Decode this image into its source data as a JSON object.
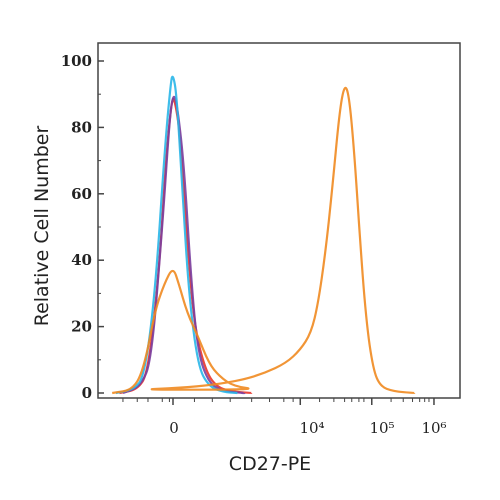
{
  "chart_data": {
    "type": "line",
    "xlabel": "CD27-PE",
    "ylabel": "Relative Cell Number",
    "ylim": [
      0,
      100
    ],
    "y_ticks": [
      "0",
      "20",
      "40",
      "60",
      "80",
      "100"
    ],
    "x_ticks": [
      "0",
      "10⁴",
      "10⁵",
      "10⁶"
    ],
    "x_scale": "biexponential (0 at left, then 10^4, 10^5, 10^6)",
    "grid": false,
    "legend": "none",
    "series": [
      {
        "color": "#e8352b",
        "points": [
          [
            -0.75,
            0
          ],
          [
            -0.5,
            1
          ],
          [
            -0.35,
            6
          ],
          [
            -0.2,
            35
          ],
          [
            -0.1,
            70
          ],
          [
            -0.02,
            88
          ],
          [
            0.02,
            89
          ],
          [
            0.1,
            78
          ],
          [
            0.2,
            45
          ],
          [
            0.3,
            20
          ],
          [
            0.45,
            7
          ],
          [
            0.6,
            2
          ],
          [
            0.8,
            0.5
          ],
          [
            1.1,
            0
          ]
        ]
      },
      {
        "color": "#7a3fa0",
        "points": [
          [
            -0.7,
            0
          ],
          [
            -0.45,
            2
          ],
          [
            -0.3,
            10
          ],
          [
            -0.15,
            50
          ],
          [
            -0.05,
            82
          ],
          [
            0.0,
            90
          ],
          [
            0.05,
            88
          ],
          [
            0.15,
            70
          ],
          [
            0.25,
            35
          ],
          [
            0.35,
            12
          ],
          [
            0.5,
            3
          ],
          [
            0.7,
            0.5
          ],
          [
            1.0,
            0
          ]
        ]
      },
      {
        "color": "#29b6e8",
        "points": [
          [
            -0.8,
            0
          ],
          [
            -0.55,
            1
          ],
          [
            -0.4,
            5
          ],
          [
            -0.25,
            30
          ],
          [
            -0.12,
            72
          ],
          [
            -0.03,
            94
          ],
          [
            0.0,
            96
          ],
          [
            0.05,
            90
          ],
          [
            0.12,
            65
          ],
          [
            0.22,
            30
          ],
          [
            0.35,
            8
          ],
          [
            0.5,
            2
          ],
          [
            0.7,
            0.3
          ],
          [
            0.9,
            0
          ]
        ]
      },
      {
        "color": "#f08a20",
        "points": [
          [
            -0.85,
            0
          ],
          [
            -0.55,
            1
          ],
          [
            -0.4,
            8
          ],
          [
            -0.25,
            25
          ],
          [
            -0.12,
            33
          ],
          [
            0.0,
            38
          ],
          [
            0.08,
            33
          ],
          [
            0.2,
            24
          ],
          [
            0.35,
            17
          ],
          [
            0.5,
            9
          ],
          [
            0.65,
            5
          ],
          [
            0.85,
            2
          ],
          [
            1.2,
            1
          ],
          [
            1.7,
            1
          ],
          [
            2.3,
            1.5
          ],
          [
            2.8,
            2.5
          ],
          [
            3.2,
            4
          ],
          [
            3.5,
            6
          ],
          [
            3.8,
            9
          ],
          [
            4.0,
            13
          ],
          [
            4.15,
            18
          ],
          [
            4.25,
            27
          ],
          [
            4.35,
            42
          ],
          [
            4.45,
            62
          ],
          [
            4.55,
            85
          ],
          [
            4.62,
            93
          ],
          [
            4.68,
            90
          ],
          [
            4.75,
            74
          ],
          [
            4.83,
            48
          ],
          [
            4.92,
            22
          ],
          [
            5.02,
            7
          ],
          [
            5.12,
            2
          ],
          [
            5.3,
            0.5
          ],
          [
            5.6,
            0
          ]
        ]
      }
    ]
  }
}
